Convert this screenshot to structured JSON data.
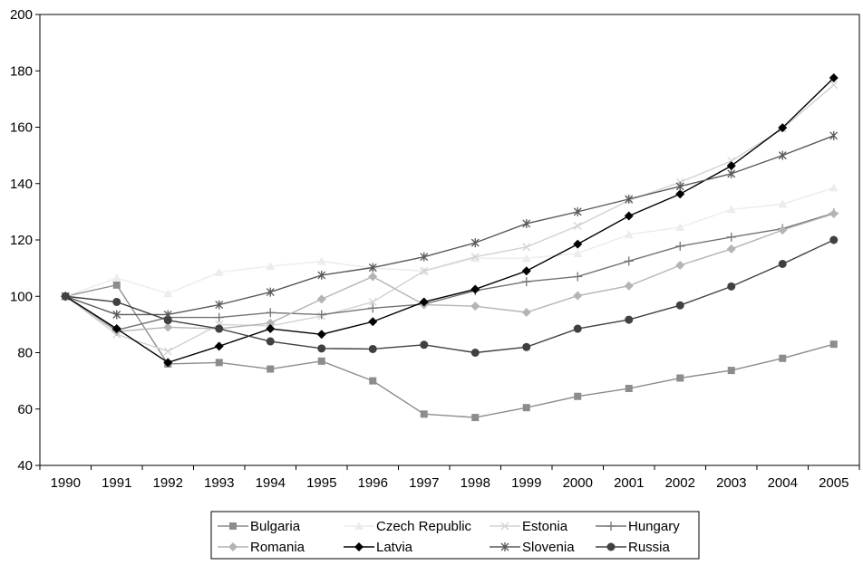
{
  "chart_data": {
    "type": "line",
    "title": "",
    "xlabel": "",
    "ylabel": "",
    "ylim": [
      40,
      200
    ],
    "yticks": [
      40,
      60,
      80,
      100,
      120,
      140,
      160,
      180,
      200
    ],
    "grid": false,
    "legend_position": "bottom",
    "categories": [
      "1990",
      "1991",
      "1992",
      "1993",
      "1994",
      "1995",
      "1996",
      "1997",
      "1998",
      "1999",
      "2000",
      "2001",
      "2002",
      "2003",
      "2004",
      "2005"
    ],
    "series": [
      {
        "name": "Bulgaria",
        "color": "#8c8c8c",
        "marker": "square",
        "values": [
          100,
          104,
          76,
          76.5,
          74.2,
          77,
          70,
          58.2,
          57,
          60.5,
          64.5,
          67.3,
          71,
          73.7,
          78,
          83
        ]
      },
      {
        "name": "Czech Republic",
        "color": "#ececec",
        "marker": "triangle",
        "values": [
          100,
          106.5,
          101,
          108.5,
          110.7,
          112.4,
          110,
          109,
          113.5,
          113.5,
          115.2,
          121.9,
          124.5,
          130.8,
          132.7,
          138.5
        ]
      },
      {
        "name": "Estonia",
        "color": "#d2d2d2",
        "marker": "x",
        "values": [
          100,
          86.5,
          80.5,
          90,
          89.5,
          93,
          98,
          109,
          114,
          117.5,
          125,
          134,
          140.5,
          148,
          159.5,
          175
        ]
      },
      {
        "name": "Hungary",
        "color": "#737373",
        "marker": "plus",
        "values": [
          100,
          88,
          92.5,
          92.5,
          94.2,
          93.5,
          95.8,
          97.2,
          102,
          105.2,
          107,
          112.5,
          117.8,
          121,
          124,
          129.5
        ]
      },
      {
        "name": "Romania",
        "color": "#b4b4b4",
        "marker": "diamond",
        "values": [
          100,
          87.5,
          89,
          88.5,
          90.5,
          99,
          107,
          97,
          96.5,
          94.3,
          100.2,
          103.7,
          111,
          116.8,
          123.5,
          129.3
        ]
      },
      {
        "name": "Latvia",
        "color": "#000000",
        "marker": "diamond",
        "values": [
          100,
          88.5,
          76.5,
          82.3,
          88.5,
          86.5,
          91,
          98,
          102.5,
          109,
          118.5,
          128.5,
          136.3,
          146.3,
          159.8,
          177.5
        ]
      },
      {
        "name": "Slovenia",
        "color": "#595959",
        "marker": "star",
        "values": [
          100,
          93.5,
          93.5,
          97,
          101.5,
          107.5,
          110.2,
          114,
          119,
          125.8,
          130,
          134.5,
          139,
          143.5,
          150,
          157
        ]
      },
      {
        "name": "Russia",
        "color": "#404040",
        "marker": "circle",
        "values": [
          100,
          98,
          91.5,
          88.5,
          84,
          81.5,
          81.3,
          82.8,
          80,
          82,
          88.5,
          91.7,
          96.8,
          103.5,
          111.5,
          120
        ]
      }
    ]
  }
}
